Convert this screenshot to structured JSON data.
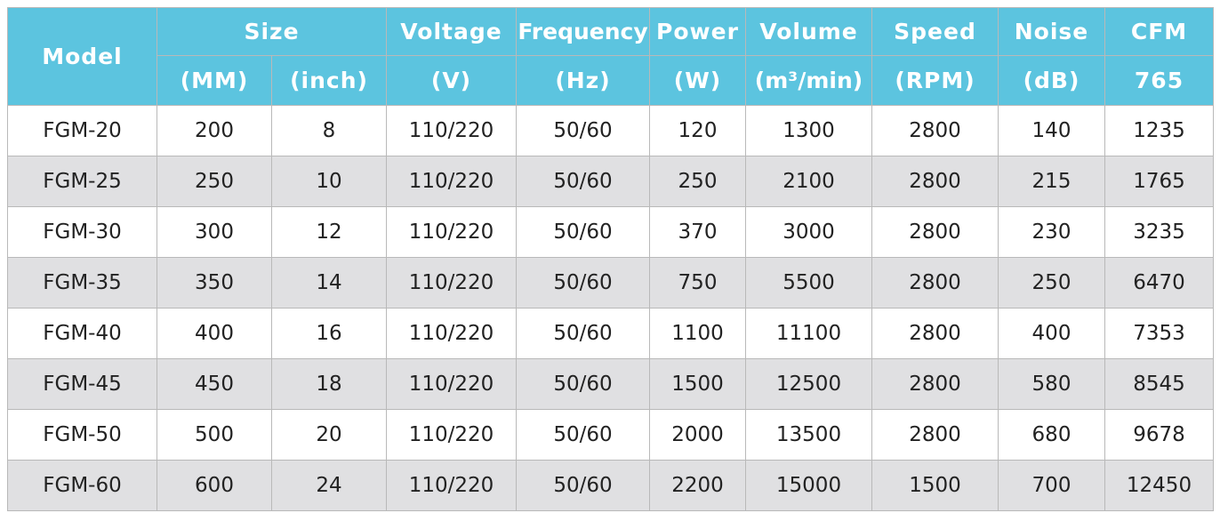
{
  "table": {
    "header": {
      "model": "Model",
      "size": "Size",
      "mm": "(MM)",
      "inch": "(inch)",
      "voltage": "Voltage",
      "voltage_unit": "(V)",
      "frequency": "Frequency",
      "frequency_unit": "(Hz)",
      "power": "Power",
      "power_unit": "(W)",
      "volume": "Volume",
      "volume_unit": "(m³/min)",
      "speed": "Speed",
      "speed_unit": "(RPM)",
      "noise": "Noise",
      "noise_unit": "(dB)",
      "cfm": "CFM",
      "cfm_unit": "765"
    },
    "rows": [
      [
        "FGM-20",
        "200",
        "8",
        "110/220",
        "50/60",
        "120",
        "1300",
        "2800",
        "140",
        "1235"
      ],
      [
        "FGM-25",
        "250",
        "10",
        "110/220",
        "50/60",
        "250",
        "2100",
        "2800",
        "215",
        "1765"
      ],
      [
        "FGM-30",
        "300",
        "12",
        "110/220",
        "50/60",
        "370",
        "3000",
        "2800",
        "230",
        "3235"
      ],
      [
        "FGM-35",
        "350",
        "14",
        "110/220",
        "50/60",
        "750",
        "5500",
        "2800",
        "250",
        "6470"
      ],
      [
        "FGM-40",
        "400",
        "16",
        "110/220",
        "50/60",
        "1100",
        "11100",
        "2800",
        "400",
        "7353"
      ],
      [
        "FGM-45",
        "450",
        "18",
        "110/220",
        "50/60",
        "1500",
        "12500",
        "2800",
        "580",
        "8545"
      ],
      [
        "FGM-50",
        "500",
        "20",
        "110/220",
        "50/60",
        "2000",
        "13500",
        "2800",
        "680",
        "9678"
      ],
      [
        "FGM-60",
        "600",
        "24",
        "110/220",
        "50/60",
        "2200",
        "15000",
        "1500",
        "700",
        "12450"
      ]
    ]
  }
}
